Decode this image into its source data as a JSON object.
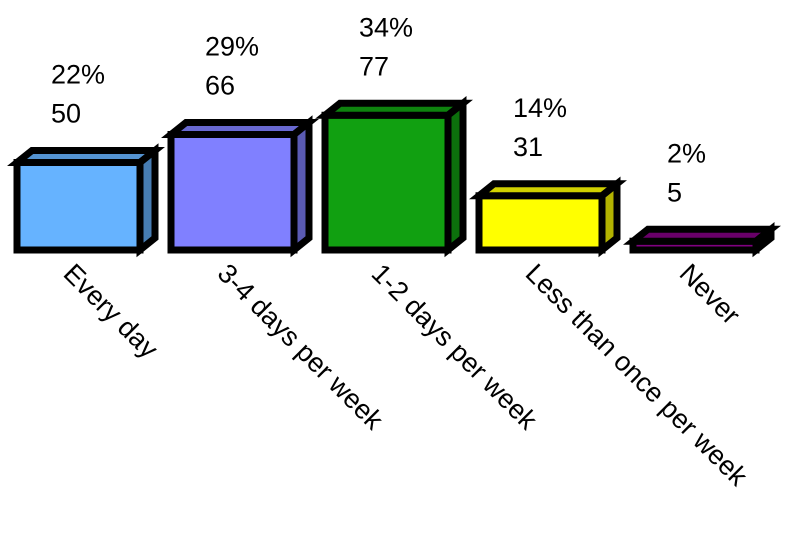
{
  "chart_data": {
    "type": "bar",
    "style": "3d",
    "categories": [
      "Every day",
      "3-4 days per week",
      "1-2 days per week",
      "Less than once per week",
      "Never"
    ],
    "series": [
      {
        "percent_labels": [
          "22%",
          "29%",
          "34%",
          "14%",
          "2%"
        ],
        "values": [
          50,
          66,
          77,
          31,
          5
        ],
        "colors": [
          "#66b3ff",
          "#8080ff",
          "#11a011",
          "#ffff00",
          "#800080"
        ]
      }
    ],
    "ylim": [
      0,
      77
    ],
    "grid": false,
    "legend": "none",
    "axis_lines": false
  }
}
